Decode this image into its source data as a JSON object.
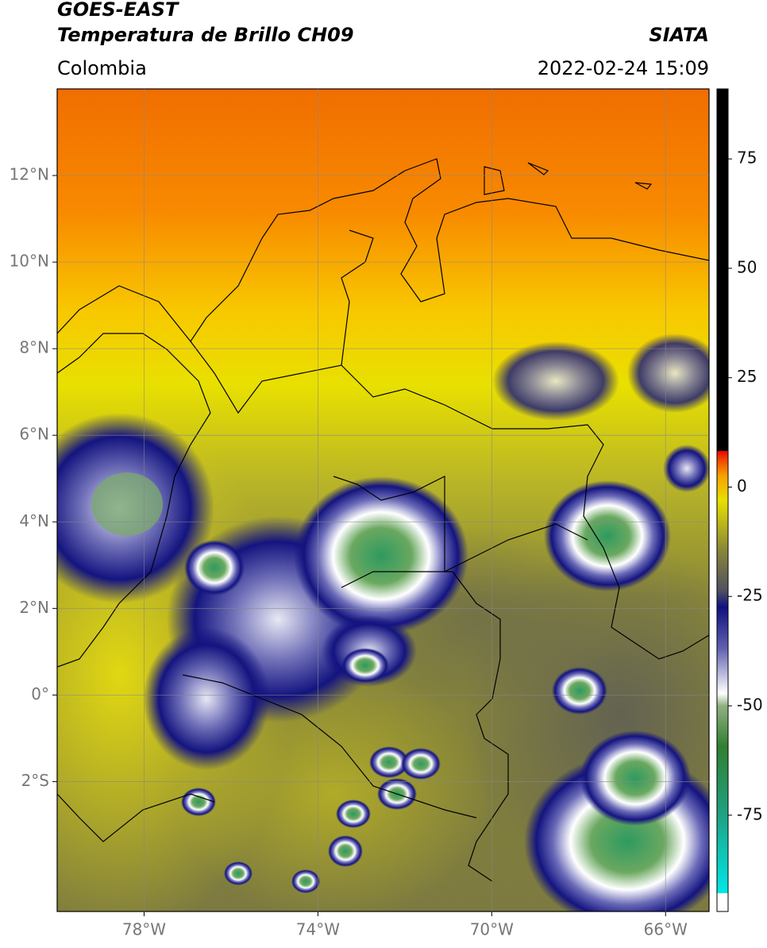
{
  "header": {
    "title": "GOES-EAST",
    "subtitle": "Temperatura de Brillo CH09",
    "source": "SIATA",
    "region": "Colombia",
    "datetime": "2022-02-24 15:09"
  },
  "map": {
    "lon_range": [
      -80,
      -65
    ],
    "lat_range": [
      -5,
      14
    ],
    "lon_ticks": [
      {
        "value": -78,
        "label": "78°W"
      },
      {
        "value": -74,
        "label": "74°W"
      },
      {
        "value": -70,
        "label": "70°W"
      },
      {
        "value": -66,
        "label": "66°W"
      }
    ],
    "lat_ticks": [
      {
        "value": 12,
        "label": "12°N"
      },
      {
        "value": 10,
        "label": "10°N"
      },
      {
        "value": 8,
        "label": "8°N"
      },
      {
        "value": 6,
        "label": "6°N"
      },
      {
        "value": 4,
        "label": "4°N"
      },
      {
        "value": 2,
        "label": "2°N"
      },
      {
        "value": 0,
        "label": "0°"
      },
      {
        "value": -2,
        "label": "2°S"
      }
    ]
  },
  "colorbar": {
    "range": [
      -97,
      91
    ],
    "ticks": [
      75,
      50,
      25,
      0,
      -25,
      -50,
      -75
    ]
  }
}
